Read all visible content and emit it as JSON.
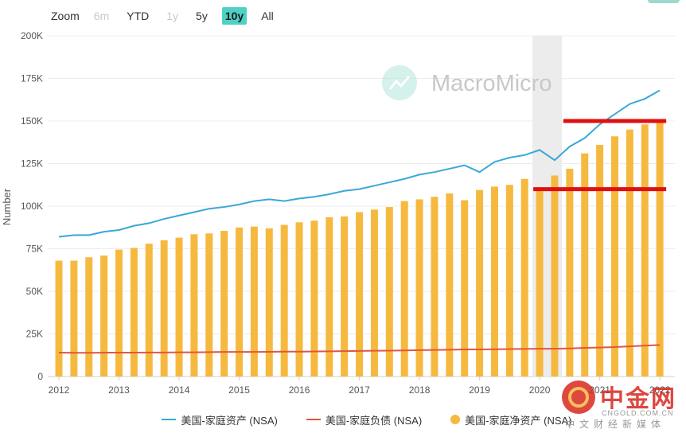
{
  "toolbar": {
    "zoom_label": "Zoom",
    "buttons": [
      {
        "label": "6m",
        "state": "disabled"
      },
      {
        "label": "YTD",
        "state": "normal"
      },
      {
        "label": "1y",
        "state": "disabled"
      },
      {
        "label": "5y",
        "state": "normal"
      },
      {
        "label": "10y",
        "state": "active"
      },
      {
        "label": "All",
        "state": "normal"
      }
    ]
  },
  "watermark": {
    "text": "MacroMicro"
  },
  "source_badge": {
    "brand": "中金网",
    "domain": "CNGOLD.COM.CN",
    "tagline": "中文财经新媒体"
  },
  "colors": {
    "assets": "#3aa8d8",
    "liabilities": "#e0573f",
    "net_worth": "#f6b93f",
    "highlight": "#e01010",
    "recession_band": "#ececec"
  },
  "chart_data": {
    "type": "bar",
    "ylabel": "Number",
    "ylim": [
      0,
      200000
    ],
    "yticks": [
      0,
      25000,
      50000,
      75000,
      100000,
      125000,
      150000,
      175000,
      200000
    ],
    "ytick_labels": [
      "0",
      "25K",
      "50K",
      "75K",
      "100K",
      "125K",
      "150K",
      "175K",
      "200K"
    ],
    "x_tick_labels": [
      "2012",
      "2013",
      "2014",
      "2015",
      "2016",
      "2017",
      "2018",
      "2019",
      "2020",
      "2021",
      "2022"
    ],
    "x": [
      "2012Q1",
      "2012Q2",
      "2012Q3",
      "2012Q4",
      "2013Q1",
      "2013Q2",
      "2013Q3",
      "2013Q4",
      "2014Q1",
      "2014Q2",
      "2014Q3",
      "2014Q4",
      "2015Q1",
      "2015Q2",
      "2015Q3",
      "2015Q4",
      "2016Q1",
      "2016Q2",
      "2016Q3",
      "2016Q4",
      "2017Q1",
      "2017Q2",
      "2017Q3",
      "2017Q4",
      "2018Q1",
      "2018Q2",
      "2018Q3",
      "2018Q4",
      "2019Q1",
      "2019Q2",
      "2019Q3",
      "2019Q4",
      "2020Q1",
      "2020Q2",
      "2020Q3",
      "2020Q4",
      "2021Q1",
      "2021Q2",
      "2021Q3",
      "2021Q4",
      "2022Q1"
    ],
    "shaded_period": [
      "2020Q1",
      "2020Q2"
    ],
    "grid": true,
    "legend_position": "bottom",
    "series": [
      {
        "name": "美国-家庭资产 (NSA)",
        "type": "line",
        "values": [
          82000,
          83000,
          83000,
          85000,
          86000,
          88500,
          90000,
          92500,
          94500,
          96500,
          98500,
          99500,
          101000,
          103000,
          104000,
          103000,
          104500,
          105500,
          107000,
          109000,
          110000,
          112000,
          114000,
          116000,
          118500,
          120000,
          122000,
          124000,
          120000,
          126000,
          128500,
          130000,
          133000,
          127000,
          135000,
          140000,
          148000,
          154000,
          160000,
          163000,
          168000
        ]
      },
      {
        "name": "美国-家庭负债 (NSA)",
        "type": "line",
        "values": [
          14000,
          13900,
          13900,
          14000,
          14000,
          14000,
          14100,
          14100,
          14200,
          14200,
          14300,
          14400,
          14400,
          14400,
          14500,
          14600,
          14600,
          14700,
          14800,
          14900,
          15000,
          15100,
          15200,
          15300,
          15500,
          15600,
          15700,
          15900,
          15900,
          16000,
          16100,
          16200,
          16300,
          16300,
          16500,
          16800,
          17000,
          17300,
          17700,
          18100,
          18500
        ]
      },
      {
        "name": "美国-家庭净资产 (NSA)",
        "type": "bar",
        "values": [
          68000,
          68000,
          70000,
          71000,
          74500,
          75500,
          78000,
          80000,
          81500,
          83500,
          84000,
          85500,
          87500,
          88000,
          87000,
          89000,
          90500,
          91500,
          93500,
          94000,
          96500,
          98000,
          99500,
          103000,
          104000,
          105500,
          107500,
          103500,
          109500,
          111500,
          112500,
          116000,
          110000,
          118000,
          122000,
          131000,
          136000,
          141000,
          145000,
          148000,
          150000
        ]
      }
    ],
    "annotations": [
      {
        "type": "horizontal-line",
        "y": 150000,
        "x_start": "2020Q3",
        "x_end": "2022Q1"
      },
      {
        "type": "horizontal-line",
        "y": 110000,
        "x_start": "2020Q1",
        "x_end": "2022Q1"
      }
    ]
  }
}
